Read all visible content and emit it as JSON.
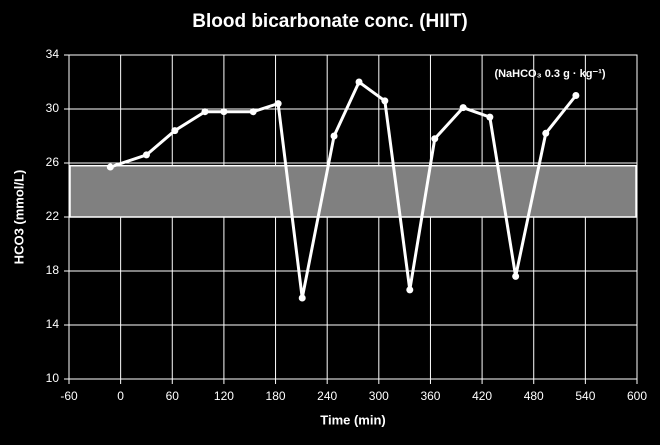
{
  "chart_data": {
    "type": "line",
    "title": "Blood bicarbonate conc. (HIIT)",
    "x_label": "Time (min)",
    "y_label": "HCO3 (mmol/L)",
    "annotation": "(NaHCO₃ 0.3 g · kg⁻¹)",
    "x": [
      -12,
      30,
      63,
      98,
      120,
      154,
      183,
      211,
      248,
      277,
      307,
      336,
      365,
      398,
      429,
      459,
      494,
      529
    ],
    "series": [
      {
        "color": "#ffffff",
        "values": [
          25.7,
          26.6,
          28.4,
          29.8,
          29.8,
          29.8,
          30.4,
          16,
          28,
          32,
          30.6,
          16.6,
          27.8,
          30.1,
          29.4,
          17.6,
          28.2,
          31
        ]
      }
    ],
    "band": [
      22,
      25.8
    ],
    "band_color": "#808080",
    "xlim": [
      -60,
      600
    ],
    "xticks": [
      -60,
      0,
      60,
      120,
      180,
      240,
      300,
      360,
      420,
      480,
      540,
      600
    ],
    "ylim": [
      10,
      34
    ],
    "yticks": [
      10,
      14,
      18,
      22,
      26,
      30,
      34
    ],
    "grid": true
  }
}
